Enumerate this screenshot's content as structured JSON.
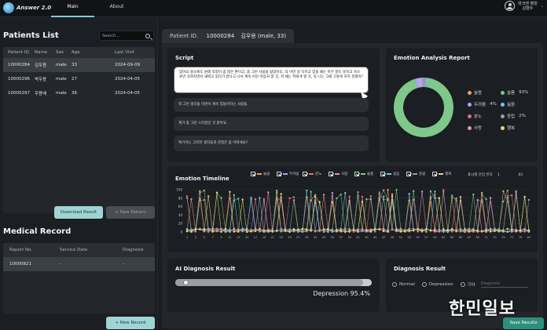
{
  "app": {
    "logo_text": "Answer 2.0"
  },
  "nav": {
    "tabs": [
      "Main",
      "About"
    ]
  },
  "user": {
    "line1": "마크엔 병원",
    "line2": "김형수"
  },
  "patients": {
    "title": "Patients List",
    "search_placeholder": "Search...",
    "columns": [
      "Patient ID.",
      "Name",
      "Sex",
      "Age",
      "Last Visit"
    ],
    "rows": [
      [
        "10000284",
        "김우용",
        "male",
        "33",
        "2024-09-09"
      ],
      [
        "10000296",
        "박우용",
        "male",
        "27",
        "2024-04-05"
      ],
      [
        "10000297",
        "우용배",
        "male",
        "36",
        "2024-04-05"
      ]
    ],
    "download_label": "Download Result",
    "new_patient_label": "+ New Patient"
  },
  "medical": {
    "title": "Medical Record",
    "columns": [
      "Report No.",
      "Service Date",
      "Diagnosis"
    ],
    "rows": [
      [
        "10000821",
        "-",
        "-"
      ]
    ],
    "new_record_label": "+ New Record"
  },
  "patient_tab": {
    "id_label": "Patient ID.",
    "id": "10000284",
    "name": "김우용 (male, 33)"
  },
  "script": {
    "title": "Script",
    "messages": [
      "맞아요 왕소에도 원래 걱정이 좀 많은 편이고, 좀 그런 사람을 닮았어도, 꼭 어떤 일 닥치고 믿을 때는 아무 말도 못하고 속으로만 삭혀지면서 새벽고 있다가 끝나고 나서 계속 이런 마음처 말 것, 저 때는 저렇게 할 것, 꼭 나는 그때 그렇게 하지 못했지?",
      "뭐 그런 생각들 하면서 계속 힘들어하는 사람들.",
      "계가 좀 그런 스타일인 것 같아요.",
      "여기서는 그러한 생각들과 감정은 좀 어떠세요?"
    ]
  },
  "emotion_report": {
    "title": "Emotion Analysis Report",
    "items": [
      {
        "label": "놀람",
        "value": "",
        "color": "#f0a060"
      },
      {
        "label": "슬픔",
        "value": "93%",
        "color": "#7dc88a"
      },
      {
        "label": "두려움",
        "value": "4%",
        "color": "#b6a4f2"
      },
      {
        "label": "싫음",
        "value": "",
        "color": "#6fc8e8"
      },
      {
        "label": "분노",
        "value": "",
        "color": "#e57373"
      },
      {
        "label": "중립",
        "value": "2%",
        "color": "#9e9e9e"
      },
      {
        "label": "사랑",
        "value": "",
        "color": "#f48fb1"
      },
      {
        "label": "행복",
        "value": "",
        "color": "#f6d36b"
      }
    ]
  },
  "chart_data": {
    "type": "pie",
    "title": "",
    "slices": [
      {
        "name": "슬픔",
        "value": 93,
        "color": "#7dc88a"
      },
      {
        "name": "두려움",
        "value": 4,
        "color": "#b6a4f2"
      },
      {
        "name": "중립",
        "value": 2,
        "color": "#9e9e9e"
      },
      {
        "name": "other",
        "value": 1,
        "color": "#6fc8e8"
      }
    ]
  },
  "timeline": {
    "title": "Emotion Timeline",
    "filters": [
      {
        "label": "놀람",
        "color": "#f0a060"
      },
      {
        "label": "두려움",
        "color": "#b6a4f2"
      },
      {
        "label": "분노",
        "color": "#e57373"
      },
      {
        "label": "사랑",
        "color": "#f48fb1"
      },
      {
        "label": "슬픔",
        "color": "#7dc88a"
      },
      {
        "label": "싫음",
        "color": "#6fc8e8"
      },
      {
        "label": "중립",
        "color": "#9e9e9e"
      },
      {
        "label": "행복",
        "color": "#f6d36b"
      }
    ],
    "range_label": "표시할 문장 번호",
    "range_start": "1",
    "range_end": "81",
    "y_ticks": [
      "100",
      "80",
      "60",
      "40",
      "20",
      "0"
    ]
  },
  "ai": {
    "title": "AI Diagnosis Result",
    "result_label": "Depression 95.4%",
    "progress": 0.954
  },
  "diagnosis": {
    "title": "Diagnosis Result",
    "options": [
      "Normal",
      "Depression",
      "기타"
    ],
    "other_placeholder": "Diagnosis"
  },
  "save_label": "Save Results",
  "watermark": "한민일보"
}
